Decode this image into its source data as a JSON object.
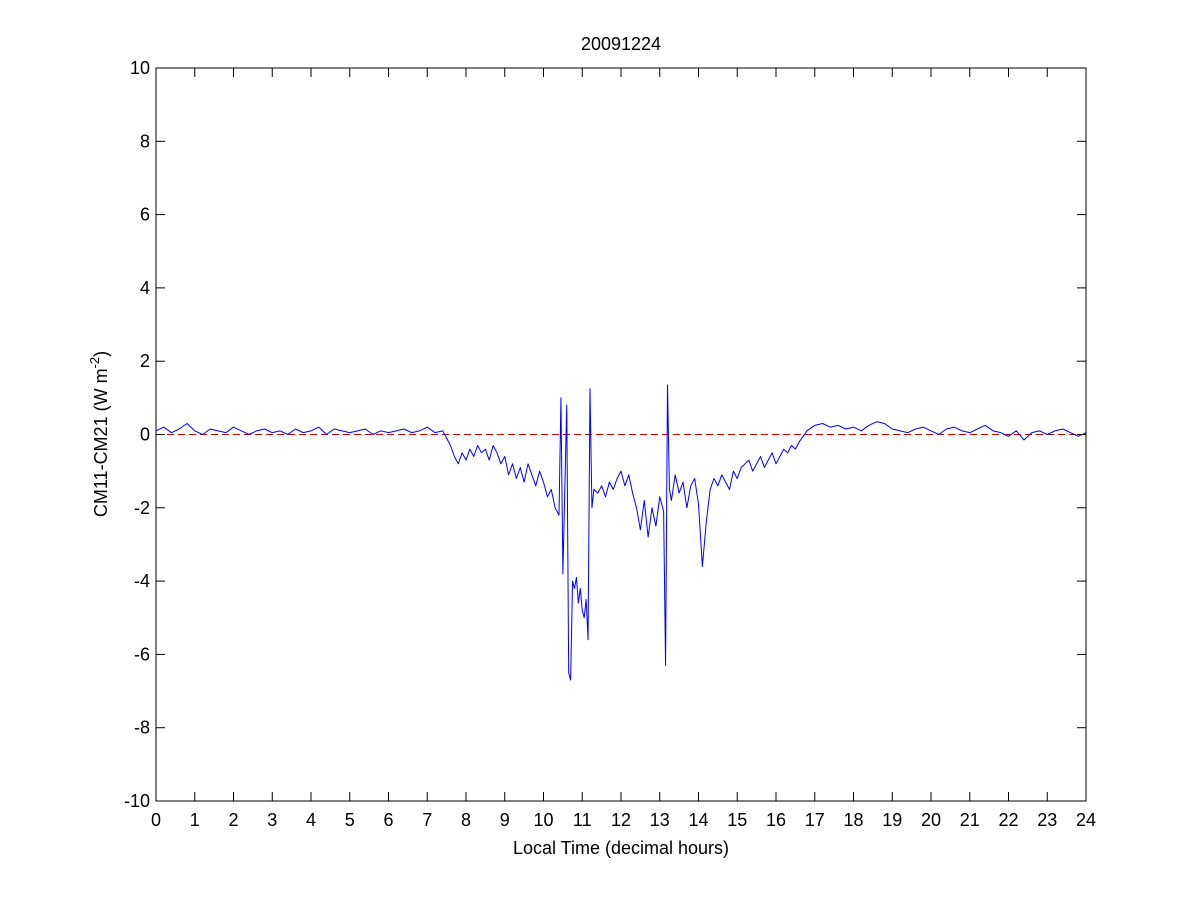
{
  "chart_data": {
    "type": "line",
    "title": "20091224",
    "xlabel": "Local Time (decimal hours)",
    "ylabel": "CM11-CM21 (W m",
    "ylabel_sup": "-2",
    "ylabel_end": ")",
    "xlim": [
      0,
      24
    ],
    "ylim": [
      -10,
      10
    ],
    "xticks": [
      0,
      1,
      2,
      3,
      4,
      5,
      6,
      7,
      8,
      9,
      10,
      11,
      12,
      13,
      14,
      15,
      16,
      17,
      18,
      19,
      20,
      21,
      22,
      23,
      24
    ],
    "yticks": [
      -10,
      -8,
      -6,
      -4,
      -2,
      0,
      2,
      4,
      6,
      8,
      10
    ],
    "hline": {
      "value": 0,
      "color": "#cc0000"
    },
    "x": [
      0,
      0.2,
      0.4,
      0.6,
      0.8,
      1,
      1.2,
      1.4,
      1.6,
      1.8,
      2,
      2.2,
      2.4,
      2.6,
      2.8,
      3,
      3.2,
      3.4,
      3.6,
      3.8,
      4,
      4.2,
      4.4,
      4.6,
      4.8,
      5,
      5.2,
      5.4,
      5.6,
      5.8,
      6,
      6.2,
      6.4,
      6.6,
      6.8,
      7,
      7.2,
      7.4,
      7.6,
      7.7,
      7.8,
      7.9,
      8,
      8.1,
      8.2,
      8.3,
      8.4,
      8.5,
      8.6,
      8.7,
      8.8,
      8.9,
      9,
      9.1,
      9.2,
      9.3,
      9.4,
      9.5,
      9.6,
      9.7,
      9.8,
      9.9,
      10,
      10.1,
      10.2,
      10.3,
      10.4,
      10.45,
      10.5,
      10.55,
      10.6,
      10.65,
      10.7,
      10.75,
      10.8,
      10.85,
      10.9,
      10.95,
      11,
      11.05,
      11.1,
      11.15,
      11.2,
      11.25,
      11.3,
      11.4,
      11.5,
      11.6,
      11.7,
      11.8,
      11.9,
      12,
      12.1,
      12.2,
      12.3,
      12.4,
      12.5,
      12.6,
      12.7,
      12.8,
      12.9,
      13,
      13.1,
      13.15,
      13.2,
      13.25,
      13.3,
      13.4,
      13.5,
      13.6,
      13.7,
      13.8,
      13.9,
      14,
      14.1,
      14.2,
      14.3,
      14.4,
      14.5,
      14.6,
      14.7,
      14.8,
      14.9,
      15,
      15.1,
      15.2,
      15.3,
      15.4,
      15.5,
      15.6,
      15.7,
      15.8,
      15.9,
      16,
      16.1,
      16.2,
      16.3,
      16.4,
      16.5,
      16.6,
      16.8,
      17,
      17.2,
      17.4,
      17.6,
      17.8,
      18,
      18.2,
      18.4,
      18.6,
      18.8,
      19,
      19.2,
      19.4,
      19.6,
      19.8,
      20,
      20.2,
      20.4,
      20.6,
      20.8,
      21,
      21.2,
      21.4,
      21.6,
      21.8,
      22,
      22.2,
      22.4,
      22.6,
      22.8,
      23,
      23.2,
      23.4,
      23.6,
      23.8,
      24
    ],
    "series": [
      {
        "color": "#0000ff",
        "values": [
          0.1,
          0.2,
          0.05,
          0.15,
          0.3,
          0.1,
          0.0,
          0.15,
          0.1,
          0.05,
          0.2,
          0.1,
          0.0,
          0.1,
          0.15,
          0.05,
          0.1,
          0.0,
          0.15,
          0.05,
          0.1,
          0.2,
          0.0,
          0.15,
          0.1,
          0.05,
          0.1,
          0.15,
          0.0,
          0.1,
          0.05,
          0.1,
          0.15,
          0.05,
          0.1,
          0.2,
          0.05,
          0.1,
          -0.3,
          -0.6,
          -0.8,
          -0.5,
          -0.7,
          -0.4,
          -0.6,
          -0.3,
          -0.5,
          -0.4,
          -0.7,
          -0.3,
          -0.5,
          -0.8,
          -0.6,
          -1.1,
          -0.8,
          -1.2,
          -0.9,
          -1.3,
          -0.8,
          -1.1,
          -1.4,
          -1.0,
          -1.3,
          -1.7,
          -1.5,
          -2.0,
          -2.2,
          1.0,
          -3.8,
          -1.5,
          0.8,
          -6.5,
          -6.7,
          -4.0,
          -4.2,
          -3.9,
          -4.6,
          -4.2,
          -4.8,
          -5.0,
          -4.5,
          -5.6,
          1.25,
          -2.0,
          -1.5,
          -1.6,
          -1.4,
          -1.7,
          -1.3,
          -1.5,
          -1.2,
          -1.0,
          -1.4,
          -1.1,
          -1.6,
          -2.0,
          -2.6,
          -1.8,
          -2.8,
          -2.0,
          -2.5,
          -1.7,
          -2.1,
          -6.3,
          1.35,
          -1.5,
          -1.8,
          -1.1,
          -1.6,
          -1.3,
          -2.0,
          -1.4,
          -1.2,
          -1.9,
          -3.6,
          -2.4,
          -1.5,
          -1.2,
          -1.4,
          -1.1,
          -1.3,
          -1.5,
          -1.0,
          -1.2,
          -0.9,
          -0.8,
          -0.7,
          -1.0,
          -0.8,
          -0.6,
          -0.9,
          -0.7,
          -0.5,
          -0.8,
          -0.6,
          -0.4,
          -0.5,
          -0.3,
          -0.4,
          -0.2,
          0.1,
          0.25,
          0.3,
          0.2,
          0.25,
          0.15,
          0.2,
          0.1,
          0.25,
          0.35,
          0.3,
          0.15,
          0.1,
          0.05,
          0.15,
          0.2,
          0.1,
          0.0,
          0.15,
          0.2,
          0.1,
          0.05,
          0.15,
          0.25,
          0.1,
          0.05,
          -0.05,
          0.1,
          -0.15,
          0.05,
          0.1,
          0.0,
          0.1,
          0.15,
          0.05,
          -0.05,
          0.05
        ]
      }
    ]
  }
}
